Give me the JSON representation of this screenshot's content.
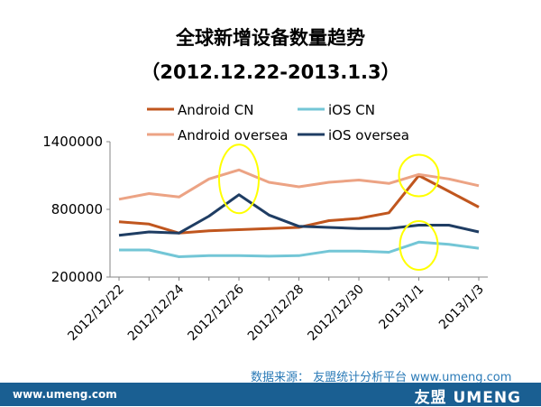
{
  "chart_data": {
    "type": "line",
    "title": "全球新增设备数量趋势",
    "subtitle": "（2012.12.22-2013.1.3）",
    "xlabel": "",
    "ylabel": "",
    "categories": [
      "2012/12/22",
      "2012/12/23",
      "2012/12/24",
      "2012/12/25",
      "2012/12/26",
      "2012/12/27",
      "2012/12/28",
      "2012/12/29",
      "2012/12/30",
      "2012/12/31",
      "2013/1/1",
      "2013/1/2",
      "2013/1/3"
    ],
    "tick_labels": [
      "2012/12/22",
      "",
      "2012/12/24",
      "",
      "2012/12/26",
      "",
      "2012/12/28",
      "",
      "2012/12/30",
      "",
      "2013/1/1",
      "",
      "2013/1/3"
    ],
    "y_ticks": [
      "1400000",
      "800000",
      "200000"
    ],
    "ylim": [
      200000,
      1400000
    ],
    "grid": false,
    "legend_position": "top",
    "series": [
      {
        "name": "Android CN",
        "color": "#c0561e",
        "values": [
          690000,
          670000,
          590000,
          610000,
          620000,
          630000,
          640000,
          700000,
          720000,
          770000,
          1100000,
          960000,
          820000
        ]
      },
      {
        "name": "iOS CN",
        "color": "#73c6d6",
        "values": [
          440000,
          440000,
          380000,
          390000,
          390000,
          385000,
          390000,
          430000,
          430000,
          420000,
          510000,
          490000,
          455000
        ]
      },
      {
        "name": "Android oversea",
        "color": "#eca384",
        "values": [
          890000,
          940000,
          910000,
          1070000,
          1150000,
          1040000,
          1000000,
          1040000,
          1060000,
          1030000,
          1110000,
          1070000,
          1010000
        ]
      },
      {
        "name": "iOS oversea",
        "color": "#1f3d63",
        "values": [
          570000,
          600000,
          590000,
          740000,
          930000,
          750000,
          650000,
          640000,
          630000,
          630000,
          660000,
          660000,
          600000
        ]
      }
    ],
    "annotations": [
      {
        "type": "ellipse",
        "color": "#ffff00",
        "at_category": 4,
        "value": 1070000
      },
      {
        "type": "ellipse",
        "color": "#ffff00",
        "at_category": 10,
        "value": 1100000
      },
      {
        "type": "ellipse",
        "color": "#ffff00",
        "at_category": 10,
        "value": 480000
      }
    ]
  },
  "source": "数据来源： 友盟统计分析平台 www.umeng.com",
  "footer": {
    "site": "www.umeng.com",
    "logo": "友盟 UMENG"
  }
}
